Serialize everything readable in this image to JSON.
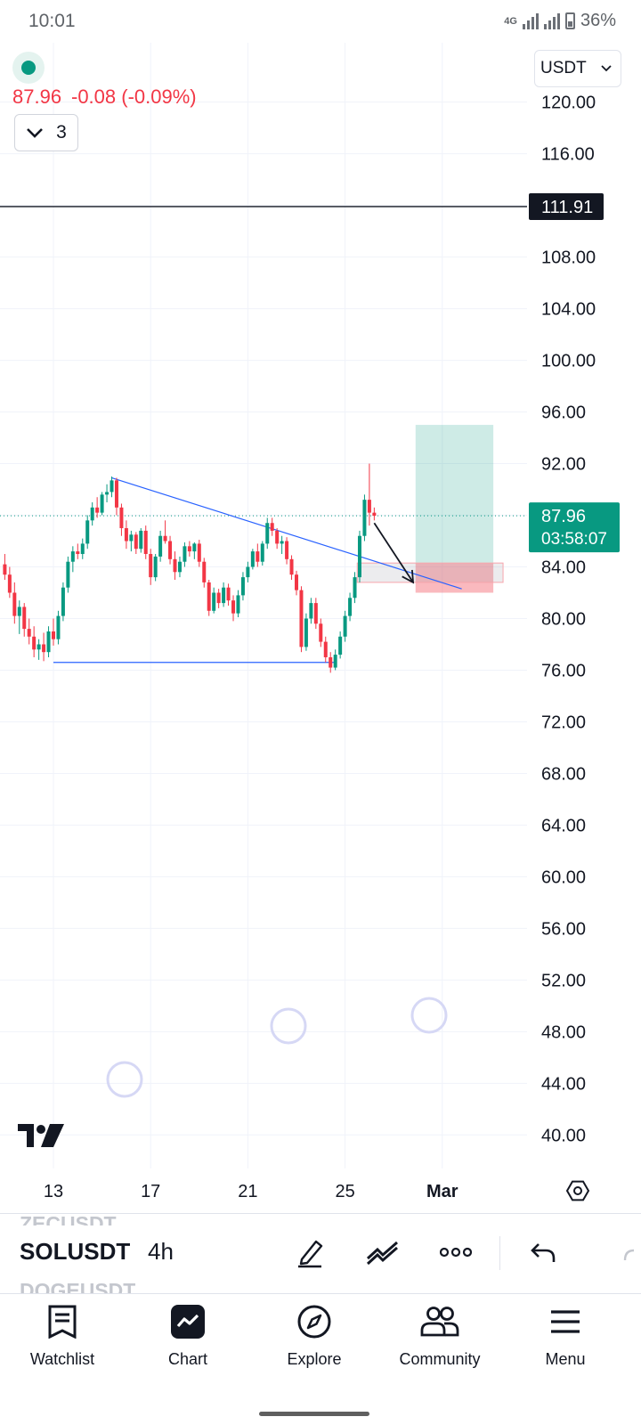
{
  "status_bar": {
    "time": "10:01",
    "network": "4G",
    "battery": "36%"
  },
  "legend": {
    "price": "87.96",
    "change": "-0.08 (-0.09%)",
    "indicator_count": "3"
  },
  "currency_select": {
    "value": "USDT"
  },
  "chart_data": {
    "type": "candlestick",
    "y_axis": {
      "ticks": [
        "120.00",
        "116.00",
        "112.00",
        "108.00",
        "104.00",
        "100.00",
        "96.00",
        "92.00",
        "88.00",
        "84.00",
        "80.00",
        "76.00",
        "72.00",
        "68.00",
        "64.00",
        "60.00",
        "56.00",
        "52.00",
        "48.00",
        "44.00",
        "40.00"
      ],
      "range": [
        37.4,
        124.6
      ]
    },
    "x_axis": {
      "ticks": [
        {
          "label": "13",
          "day": 13
        },
        {
          "label": "17",
          "day": 17
        },
        {
          "label": "21",
          "day": 21
        },
        {
          "label": "25",
          "day": 25
        },
        {
          "label": "Mar",
          "day": 29
        }
      ]
    },
    "price_lines": [
      {
        "value": 111.91,
        "label": "111.91",
        "style": "solid",
        "color": "#131722"
      },
      {
        "value": 87.96,
        "label": "87.96",
        "countdown": "03:58:07",
        "style": "dotted",
        "color": "#089981"
      }
    ],
    "drawings": [
      {
        "kind": "trendline",
        "from": {
          "day": 15.4,
          "price": 90.9
        },
        "to": {
          "day": 29.8,
          "price": 82.3
        },
        "color": "#2962ff"
      },
      {
        "kind": "horizontal_segment",
        "from": {
          "day": 13,
          "price": 76.6
        },
        "to": {
          "day": 24.6,
          "price": 76.6
        },
        "color": "#2962ff"
      },
      {
        "kind": "arrow",
        "from": {
          "day": 26.2,
          "price": 87.4
        },
        "to": {
          "day": 27.8,
          "price": 82.8
        },
        "color": "#131722"
      },
      {
        "kind": "rectangle",
        "from": {
          "day": 25.5,
          "price": 84.3
        },
        "to": {
          "day": 31.5,
          "price": 82.8
        },
        "color": "#9598a1"
      },
      {
        "kind": "long_position",
        "entry": 84.3,
        "target": 95.0,
        "stop": 82.0,
        "from_day": 27.9,
        "to_day": 31.1
      }
    ],
    "candles": [
      [
        11.0,
        84.2,
        85.0,
        83.0,
        83.4
      ],
      [
        11.2,
        83.4,
        84.0,
        81.6,
        82.0
      ],
      [
        11.4,
        82.0,
        82.8,
        79.6,
        80.2
      ],
      [
        11.6,
        80.2,
        81.4,
        78.8,
        80.9
      ],
      [
        11.8,
        80.9,
        81.2,
        78.6,
        79.2
      ],
      [
        12.0,
        79.2,
        80.0,
        78.0,
        78.6
      ],
      [
        12.2,
        78.6,
        79.4,
        77.0,
        77.6
      ],
      [
        12.4,
        77.6,
        78.4,
        76.8,
        78.0
      ],
      [
        12.6,
        78.0,
        78.9,
        76.7,
        77.4
      ],
      [
        12.8,
        77.4,
        79.4,
        77.0,
        79.0
      ],
      [
        13.0,
        79.0,
        80.0,
        77.9,
        78.4
      ],
      [
        13.2,
        78.4,
        80.6,
        78.0,
        80.2
      ],
      [
        13.4,
        80.2,
        82.8,
        79.8,
        82.4
      ],
      [
        13.6,
        82.4,
        84.8,
        82.0,
        84.4
      ],
      [
        13.8,
        84.4,
        85.6,
        83.6,
        85.2
      ],
      [
        14.0,
        85.2,
        85.8,
        84.6,
        85.0
      ],
      [
        14.2,
        85.0,
        86.2,
        84.6,
        85.8
      ],
      [
        14.4,
        85.8,
        88.0,
        85.4,
        87.6
      ],
      [
        14.6,
        87.6,
        89.0,
        87.2,
        88.6
      ],
      [
        14.8,
        88.6,
        89.4,
        87.8,
        88.2
      ],
      [
        15.0,
        88.2,
        89.8,
        88.0,
        89.6
      ],
      [
        15.2,
        89.6,
        90.4,
        89.0,
        89.8
      ],
      [
        15.4,
        89.8,
        91.0,
        89.4,
        90.7
      ],
      [
        15.6,
        90.7,
        90.9,
        88.0,
        88.6
      ],
      [
        15.8,
        88.6,
        88.9,
        86.4,
        87.0
      ],
      [
        16.0,
        87.0,
        87.6,
        85.4,
        86.0
      ],
      [
        16.2,
        86.0,
        86.8,
        85.2,
        86.5
      ],
      [
        16.4,
        86.5,
        86.7,
        85.0,
        85.4
      ],
      [
        16.6,
        85.4,
        87.0,
        85.1,
        86.8
      ],
      [
        16.8,
        86.8,
        87.2,
        84.6,
        85.0
      ],
      [
        17.0,
        85.0,
        85.4,
        82.6,
        83.2
      ],
      [
        17.2,
        83.2,
        85.0,
        82.9,
        84.8
      ],
      [
        17.4,
        84.8,
        86.8,
        84.4,
        86.4
      ],
      [
        17.6,
        86.4,
        87.6,
        85.8,
        86.0
      ],
      [
        17.8,
        86.0,
        86.4,
        84.2,
        84.6
      ],
      [
        18.0,
        84.6,
        85.2,
        83.0,
        83.6
      ],
      [
        18.2,
        83.6,
        84.8,
        83.2,
        84.4
      ],
      [
        18.4,
        84.4,
        85.9,
        84.0,
        85.6
      ],
      [
        18.6,
        85.6,
        86.0,
        84.8,
        85.2
      ],
      [
        18.8,
        85.2,
        85.9,
        84.6,
        85.8
      ],
      [
        19.0,
        85.8,
        86.1,
        84.0,
        84.4
      ],
      [
        19.2,
        84.4,
        84.7,
        82.4,
        82.8
      ],
      [
        19.4,
        82.8,
        83.0,
        80.2,
        80.6
      ],
      [
        19.6,
        80.6,
        82.4,
        80.4,
        82.0
      ],
      [
        19.8,
        82.0,
        82.3,
        80.8,
        81.2
      ],
      [
        20.0,
        81.2,
        82.8,
        80.9,
        82.4
      ],
      [
        20.2,
        82.4,
        82.7,
        81.0,
        81.4
      ],
      [
        20.4,
        81.4,
        81.8,
        79.8,
        80.4
      ],
      [
        20.6,
        80.4,
        82.2,
        80.1,
        81.8
      ],
      [
        20.8,
        81.8,
        83.6,
        81.4,
        83.2
      ],
      [
        21.0,
        83.2,
        84.4,
        82.8,
        84.0
      ],
      [
        21.2,
        84.0,
        85.4,
        83.8,
        85.2
      ],
      [
        21.4,
        85.2,
        85.8,
        84.0,
        84.4
      ],
      [
        21.6,
        84.4,
        86.0,
        84.1,
        85.8
      ],
      [
        21.8,
        85.8,
        87.8,
        85.4,
        87.4
      ],
      [
        22.0,
        87.4,
        87.8,
        86.4,
        86.8
      ],
      [
        22.2,
        86.8,
        87.0,
        85.4,
        85.8
      ],
      [
        22.4,
        85.8,
        86.4,
        85.0,
        86.0
      ],
      [
        22.6,
        86.0,
        86.3,
        84.2,
        84.6
      ],
      [
        22.8,
        84.6,
        84.9,
        83.0,
        83.4
      ],
      [
        23.0,
        83.4,
        83.7,
        81.8,
        82.2
      ],
      [
        23.2,
        82.2,
        82.5,
        77.4,
        77.8
      ],
      [
        23.4,
        77.8,
        80.4,
        77.5,
        80.0
      ],
      [
        23.6,
        80.0,
        81.6,
        79.6,
        81.2
      ],
      [
        23.8,
        81.2,
        81.6,
        79.2,
        79.6
      ],
      [
        24.0,
        79.6,
        80.0,
        77.8,
        78.2
      ],
      [
        24.2,
        78.2,
        78.6,
        76.6,
        77.0
      ],
      [
        24.4,
        77.0,
        77.4,
        75.8,
        76.2
      ],
      [
        24.6,
        76.2,
        77.6,
        76.0,
        77.2
      ],
      [
        24.8,
        77.2,
        79.0,
        76.9,
        78.6
      ],
      [
        25.0,
        78.6,
        80.6,
        78.2,
        80.2
      ],
      [
        25.2,
        80.2,
        82.0,
        79.8,
        81.6
      ],
      [
        25.4,
        81.6,
        83.6,
        81.2,
        83.2
      ],
      [
        25.6,
        83.2,
        86.8,
        82.8,
        86.4
      ],
      [
        25.8,
        86.4,
        89.6,
        86.0,
        89.2
      ],
      [
        26.0,
        89.2,
        92.0,
        87.2,
        88.2
      ],
      [
        26.2,
        88.2,
        88.6,
        87.6,
        87.96
      ]
    ]
  },
  "watermark": {
    "icon": "tradingview-logo-icon"
  },
  "toolbar": {
    "prev_symbol": "ZECUSDT",
    "symbol": "SOLUSDT",
    "next_symbol": "DOGEUSDT",
    "interval": "4h",
    "icons": [
      "pen-icon",
      "multi-line-icon",
      "more-icon",
      "undo-icon",
      "redo-icon"
    ]
  },
  "nav": {
    "items": [
      {
        "label": "Watchlist",
        "icon": "watchlist-icon"
      },
      {
        "label": "Chart",
        "icon": "chart-icon"
      },
      {
        "label": "Explore",
        "icon": "compass-icon"
      },
      {
        "label": "Community",
        "icon": "community-icon"
      },
      {
        "label": "Menu",
        "icon": "menu-icon"
      }
    ]
  },
  "colors": {
    "up": "#089981",
    "down": "#f23645",
    "trendline": "#2962ff",
    "profit_zone": "#089981",
    "loss_zone": "#f23645"
  }
}
